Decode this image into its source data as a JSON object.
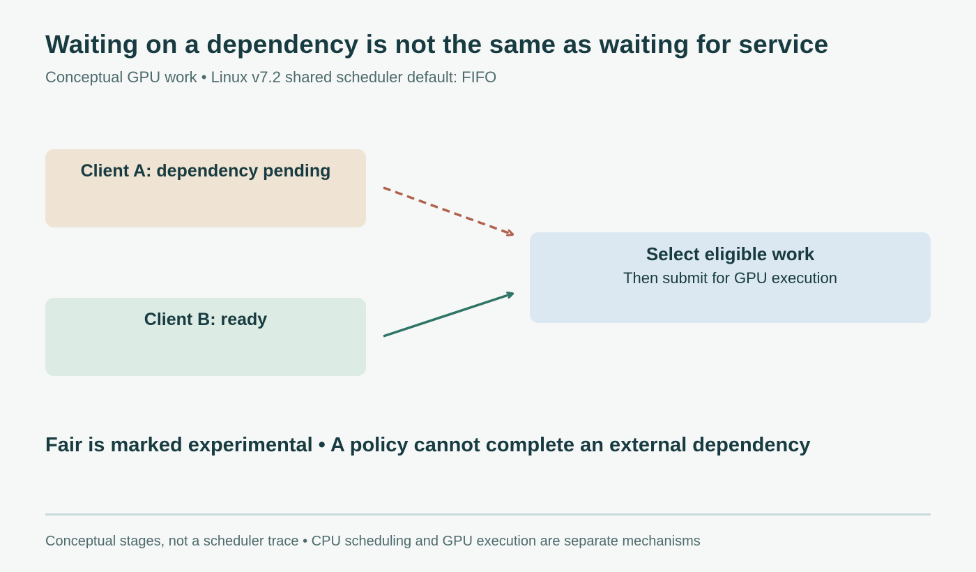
{
  "header": {
    "title": "Waiting on a dependency is not the same as waiting for service",
    "subtitle": "Conceptual GPU work • Linux v7.2 shared scheduler default: FIFO"
  },
  "diagram": {
    "client_a": {
      "label": "Client A: dependency pending",
      "color": "#efe3d3"
    },
    "client_b": {
      "label": "Client B: ready",
      "color": "#dcebe3"
    },
    "selector": {
      "title": "Select eligible work",
      "subtitle": "Then submit for GPU execution",
      "color": "#dbe8f1"
    },
    "arrows": {
      "pending_color": "#b0624e",
      "ready_color": "#2f7565"
    }
  },
  "note": "Fair is marked experimental • A policy cannot complete an external dependency",
  "footer": "Conceptual stages, not a scheduler trace • CPU scheduling and GPU execution are separate mechanisms"
}
